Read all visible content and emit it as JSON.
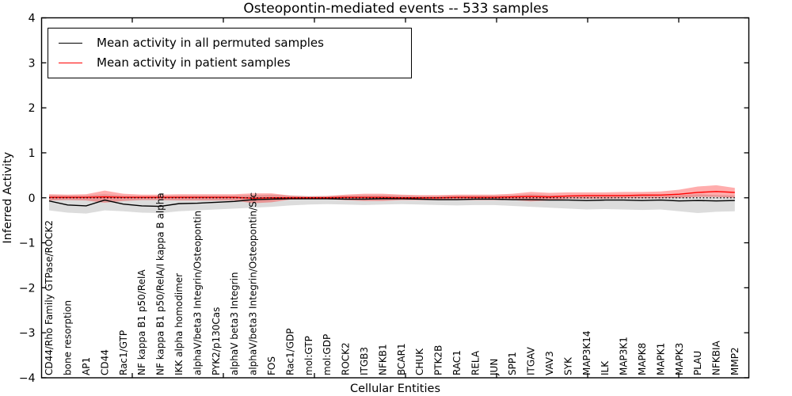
{
  "title": "Osteopontin-mediated events -- 533 samples",
  "legend": {
    "position": "upper left",
    "items": [
      {
        "label": "Mean activity in all permuted samples",
        "color": "#000000"
      },
      {
        "label": "Mean activity in patient samples",
        "color": "#ff0000"
      }
    ]
  },
  "axes": {
    "ylabel": "Inferred Activity",
    "xlabel": "Cellular Entities",
    "yticks": [
      "4",
      "3",
      "2",
      "1",
      "0",
      "−1",
      "−2",
      "−3",
      "−4"
    ],
    "ylim": [
      -4,
      4
    ],
    "grid": false
  },
  "chart_data": {
    "type": "line",
    "title": "Osteopontin-mediated events -- 533 samples",
    "xlabel": "Cellular Entities",
    "ylabel": "Inferred Activity",
    "ylim": [
      -4,
      4
    ],
    "zero_line_style": "black dotted at y=0",
    "legend_position": "upper left",
    "grid": false,
    "categories": [
      "CD44/Rho Family GTPase/ROCK2",
      "bone resorption",
      "AP1",
      "CD44",
      "Rac1/GTP",
      "NF kappa B1 p50/RelA",
      "NF kappa B1 p50/RelA/I kappa B alpha",
      "IKK alpha homodimer",
      "alphaV/beta3 Integrin/Osteopontin",
      "PYK2/p130Cas",
      "alphaV beta3 Integrin",
      "alphaV/beta3 Integrin/Osteopontin/Src",
      "FOS",
      "Rac1/GDP",
      "mol:GTP",
      "mol:GDP",
      "ROCK2",
      "ITGB3",
      "NFKB1",
      "BCAR1",
      "CHUK",
      "PTK2B",
      "RAC1",
      "RELA",
      "JUN",
      "SPP1",
      "ITGAV",
      "VAV3",
      "SYK",
      "MAP3K14",
      "ILK",
      "MAP3K1",
      "MAPK8",
      "MAPK1",
      "MAPK3",
      "PLAU",
      "NFKBIA",
      "MMP2"
    ],
    "series": [
      {
        "name": "Mean activity in all permuted samples",
        "color": "#000000",
        "band_color": "rgba(128,128,128,0.28)",
        "values": [
          -0.07,
          -0.16,
          -0.18,
          -0.05,
          -0.14,
          -0.18,
          -0.19,
          -0.13,
          -0.12,
          -0.1,
          -0.08,
          -0.04,
          -0.03,
          -0.02,
          -0.02,
          -0.02,
          -0.03,
          -0.03,
          -0.02,
          -0.02,
          -0.03,
          -0.04,
          -0.04,
          -0.03,
          -0.03,
          -0.04,
          -0.04,
          -0.05,
          -0.05,
          -0.06,
          -0.05,
          -0.05,
          -0.06,
          -0.05,
          -0.07,
          -0.06,
          -0.07,
          -0.06
        ],
        "band_upper": [
          0.06,
          0.05,
          0.05,
          0.08,
          0.05,
          0.04,
          0.04,
          0.05,
          0.05,
          0.05,
          0.05,
          0.06,
          0.07,
          0.05,
          0.04,
          0.04,
          0.05,
          0.06,
          0.06,
          0.05,
          0.04,
          0.04,
          0.05,
          0.05,
          0.05,
          0.06,
          0.08,
          0.06,
          0.05,
          0.04,
          0.05,
          0.06,
          0.05,
          0.04,
          0.06,
          0.08,
          0.06,
          0.05
        ],
        "band_lower": [
          -0.28,
          -0.33,
          -0.35,
          -0.28,
          -0.3,
          -0.33,
          -0.34,
          -0.3,
          -0.28,
          -0.26,
          -0.24,
          -0.22,
          -0.2,
          -0.17,
          -0.15,
          -0.14,
          -0.15,
          -0.16,
          -0.15,
          -0.14,
          -0.15,
          -0.16,
          -0.17,
          -0.16,
          -0.16,
          -0.18,
          -0.2,
          -0.22,
          -0.24,
          -0.26,
          -0.25,
          -0.26,
          -0.27,
          -0.26,
          -0.3,
          -0.34,
          -0.31,
          -0.3
        ]
      },
      {
        "name": "Mean activity in patient samples",
        "color": "#ff0000",
        "band_color": "rgba(255,0,0,0.32)",
        "values": [
          0.01,
          0.01,
          0.01,
          0.02,
          0.01,
          0.01,
          0.01,
          0.01,
          0.01,
          0.01,
          0.01,
          -0.01,
          0.0,
          0.0,
          0.0,
          0.0,
          0.01,
          0.01,
          0.01,
          0.0,
          0.0,
          0.0,
          0.01,
          0.01,
          0.01,
          0.02,
          0.03,
          0.02,
          0.04,
          0.05,
          0.05,
          0.05,
          0.06,
          0.06,
          0.08,
          0.12,
          0.14,
          0.12
        ],
        "band_upper": [
          0.08,
          0.07,
          0.08,
          0.16,
          0.09,
          0.07,
          0.07,
          0.08,
          0.08,
          0.08,
          0.08,
          0.1,
          0.1,
          0.05,
          0.03,
          0.04,
          0.07,
          0.09,
          0.09,
          0.07,
          0.06,
          0.06,
          0.07,
          0.07,
          0.07,
          0.09,
          0.13,
          0.11,
          0.12,
          0.12,
          0.12,
          0.13,
          0.13,
          0.14,
          0.18,
          0.25,
          0.28,
          0.22
        ],
        "band_lower": [
          -0.06,
          -0.05,
          -0.06,
          -0.11,
          -0.07,
          -0.05,
          -0.05,
          -0.06,
          -0.06,
          -0.06,
          -0.06,
          -0.12,
          -0.1,
          -0.04,
          -0.03,
          -0.03,
          -0.05,
          -0.07,
          -0.07,
          -0.05,
          -0.05,
          -0.05,
          -0.05,
          -0.05,
          -0.05,
          -0.05,
          -0.08,
          -0.06,
          -0.02,
          -0.02,
          -0.02,
          -0.01,
          -0.01,
          -0.01,
          0.0,
          0.02,
          0.02,
          0.0
        ]
      }
    ]
  }
}
